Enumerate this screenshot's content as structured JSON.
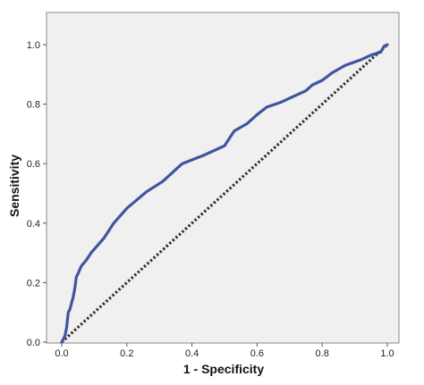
{
  "chart_data": {
    "type": "line",
    "title": "",
    "xlabel": "1 - Specificity",
    "ylabel": "Sensitivity",
    "xlim": [
      0.0,
      1.0
    ],
    "ylim": [
      0.0,
      1.0
    ],
    "xticks": [
      0.0,
      0.2,
      0.4,
      0.6,
      0.8,
      1.0
    ],
    "yticks": [
      0.0,
      0.2,
      0.4,
      0.6,
      0.8,
      1.0
    ],
    "xtick_labels": [
      "0.0",
      "0.2",
      "0.4",
      "0.6",
      "0.8",
      "1.0"
    ],
    "ytick_labels": [
      "0.0",
      "0.2",
      "0.4",
      "0.6",
      "0.8",
      "1.0"
    ],
    "grid": false,
    "legend": "none",
    "background": "#f0f0f0",
    "series": [
      {
        "style": "solid",
        "color": "#3f55a0",
        "x": [
          0.0,
          0.01,
          0.015,
          0.02,
          0.025,
          0.03,
          0.035,
          0.04,
          0.045,
          0.05,
          0.06,
          0.075,
          0.09,
          0.11,
          0.13,
          0.16,
          0.2,
          0.26,
          0.31,
          0.37,
          0.44,
          0.5,
          0.53,
          0.57,
          0.6,
          0.63,
          0.67,
          0.72,
          0.75,
          0.77,
          0.8,
          0.83,
          0.87,
          0.92,
          0.95,
          0.98,
          0.99,
          1.0
        ],
        "y": [
          0.0,
          0.02,
          0.05,
          0.1,
          0.11,
          0.13,
          0.15,
          0.18,
          0.22,
          0.23,
          0.255,
          0.275,
          0.3,
          0.325,
          0.35,
          0.4,
          0.45,
          0.505,
          0.54,
          0.6,
          0.63,
          0.66,
          0.71,
          0.735,
          0.765,
          0.79,
          0.805,
          0.83,
          0.845,
          0.865,
          0.88,
          0.905,
          0.93,
          0.95,
          0.965,
          0.975,
          0.995,
          1.0
        ]
      },
      {
        "style": "dotted",
        "color": "#333333",
        "x": [
          0.0,
          1.0
        ],
        "y": [
          0.0,
          1.0
        ]
      }
    ]
  }
}
